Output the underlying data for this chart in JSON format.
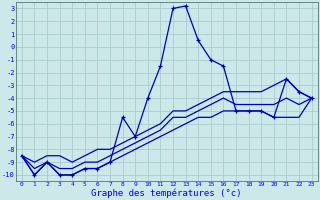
{
  "xlabel": "Graphe des températures (°c)",
  "background_color": "#cce8e8",
  "grid_color": "#aacccc",
  "line_color": "#0000bb",
  "ylim": [
    -10.5,
    3.5
  ],
  "xlim": [
    -0.5,
    23.5
  ],
  "curve_main": [
    -8.5,
    -10.0,
    -9.0,
    -10.0,
    -10.0,
    -9.5,
    -9.5,
    -9.0,
    -5.5,
    -7.0,
    -4.0,
    -1.5,
    3.0,
    3.2,
    0.5,
    -1.0,
    -1.5,
    -5.0,
    -5.0,
    -5.0,
    -5.5,
    -2.5,
    -3.5,
    -4.0
  ],
  "curve_min": [
    -8.5,
    -10.0,
    -9.0,
    -10.0,
    -10.0,
    -9.5,
    -9.5,
    -9.0,
    -8.5,
    -8.0,
    -7.5,
    -7.0,
    -6.5,
    -6.0,
    -5.5,
    -5.5,
    -5.0,
    -5.0,
    -5.0,
    -5.0,
    -5.5,
    -5.5,
    -5.5,
    -4.0
  ],
  "curve_max": [
    -8.5,
    -9.0,
    -8.5,
    -8.5,
    -9.0,
    -8.5,
    -8.0,
    -8.0,
    -7.5,
    -7.0,
    -6.5,
    -6.0,
    -5.0,
    -5.0,
    -4.5,
    -4.0,
    -3.5,
    -3.5,
    -3.5,
    -3.5,
    -3.0,
    -2.5,
    -3.5,
    -4.0
  ],
  "curve_avg": [
    -8.5,
    -9.5,
    -9.0,
    -9.5,
    -9.5,
    -9.0,
    -9.0,
    -8.5,
    -8.0,
    -7.5,
    -7.0,
    -6.5,
    -5.5,
    -5.5,
    -5.0,
    -4.5,
    -4.0,
    -4.5,
    -4.5,
    -4.5,
    -4.5,
    -4.0,
    -4.5,
    -4.0
  ],
  "yticks": [
    3,
    2,
    1,
    0,
    -1,
    -2,
    -3,
    -4,
    -5,
    -6,
    -7,
    -8,
    -9,
    -10
  ],
  "xticks": [
    0,
    1,
    2,
    3,
    4,
    5,
    6,
    7,
    8,
    9,
    10,
    11,
    12,
    13,
    14,
    15,
    16,
    17,
    18,
    19,
    20,
    21,
    22,
    23
  ]
}
